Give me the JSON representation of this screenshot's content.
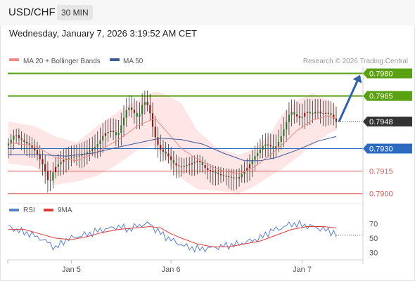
{
  "header": {
    "pair": "USD/CHF",
    "timeframe": "30 MIN"
  },
  "timestamp": "Wednesday, January 7, 2026 3:19:52 AM CET",
  "watermark": "Research © 2026 Trading Central",
  "colors": {
    "bollinger": "#f28b82",
    "ma50": "#3d5a9a",
    "resistance": "#5aa013",
    "support_level": "#e05555",
    "pivot": "#2d6bc1",
    "current": "#333333",
    "rsi": "#5a80c8",
    "rsi_ma": "#e03a3a",
    "arrow": "#2f62a8"
  },
  "chart_data": [
    {
      "type": "candlestick",
      "title": "USD/CHF",
      "timeframe": "30 MIN",
      "ylim": [
        0.7898,
        0.7984
      ],
      "legend": [
        "MA 20 + Bollinger Bands",
        "MA 50"
      ],
      "legend_position": "top-left",
      "x_ticks": [
        "Jan 5",
        "Jan 6",
        "Jan 7"
      ],
      "levels": [
        {
          "value": 0.798,
          "label": "0.7980",
          "kind": "resistance"
        },
        {
          "value": 0.7965,
          "label": "0.7965",
          "kind": "resistance"
        },
        {
          "value": 0.793,
          "label": "0.7930",
          "kind": "pivot"
        },
        {
          "value": 0.7915,
          "label": "0.7915",
          "kind": "support"
        },
        {
          "value": 0.79,
          "label": "0.7900",
          "kind": "support"
        }
      ],
      "current_price": {
        "value": 0.7948,
        "label": "0.7948"
      },
      "projection": {
        "from": 0.7948,
        "to": 0.798
      },
      "price_path": [
        [
          0,
          0.7932
        ],
        [
          3,
          0.794
        ],
        [
          5,
          0.7936
        ],
        [
          8,
          0.7933
        ],
        [
          11,
          0.7928
        ],
        [
          14,
          0.7918
        ],
        [
          16,
          0.7906
        ],
        [
          18,
          0.7917
        ],
        [
          21,
          0.7922
        ],
        [
          24,
          0.7924
        ],
        [
          27,
          0.7925
        ],
        [
          30,
          0.7927
        ],
        [
          33,
          0.793
        ],
        [
          35,
          0.7934
        ],
        [
          37,
          0.794
        ],
        [
          40,
          0.7942
        ],
        [
          42,
          0.7938
        ],
        [
          44,
          0.7948
        ],
        [
          46,
          0.7958
        ],
        [
          48,
          0.7955
        ],
        [
          50,
          0.795
        ],
        [
          52,
          0.7962
        ],
        [
          54,
          0.7958
        ],
        [
          56,
          0.794
        ],
        [
          58,
          0.793
        ],
        [
          61,
          0.7926
        ],
        [
          64,
          0.7919
        ],
        [
          67,
          0.7918
        ],
        [
          70,
          0.792
        ],
        [
          73,
          0.7922
        ],
        [
          76,
          0.7916
        ],
        [
          79,
          0.7914
        ],
        [
          82,
          0.7912
        ],
        [
          85,
          0.7911
        ],
        [
          88,
          0.791
        ],
        [
          90,
          0.7914
        ],
        [
          92,
          0.7918
        ],
        [
          94,
          0.7924
        ],
        [
          96,
          0.7928
        ],
        [
          98,
          0.7933
        ],
        [
          100,
          0.7932
        ],
        [
          102,
          0.793
        ],
        [
          104,
          0.7936
        ],
        [
          106,
          0.7945
        ],
        [
          108,
          0.7955
        ],
        [
          110,
          0.7952
        ],
        [
          112,
          0.795
        ],
        [
          114,
          0.7955
        ],
        [
          116,
          0.7953
        ],
        [
          118,
          0.7955
        ],
        [
          120,
          0.7953
        ],
        [
          122,
          0.7954
        ],
        [
          124,
          0.7952
        ],
        [
          125,
          0.7948
        ]
      ],
      "ma20_path": [
        [
          0,
          0.7934
        ],
        [
          10,
          0.7932
        ],
        [
          18,
          0.7924
        ],
        [
          26,
          0.7922
        ],
        [
          34,
          0.7928
        ],
        [
          42,
          0.7936
        ],
        [
          50,
          0.7946
        ],
        [
          56,
          0.795
        ],
        [
          60,
          0.7942
        ],
        [
          66,
          0.793
        ],
        [
          72,
          0.7923
        ],
        [
          80,
          0.7916
        ],
        [
          88,
          0.7913
        ],
        [
          94,
          0.7918
        ],
        [
          100,
          0.7926
        ],
        [
          104,
          0.7932
        ],
        [
          110,
          0.7942
        ],
        [
          116,
          0.7949
        ],
        [
          122,
          0.7952
        ],
        [
          125,
          0.795
        ]
      ],
      "bb_upper": [
        [
          0,
          0.7948
        ],
        [
          10,
          0.7945
        ],
        [
          18,
          0.7938
        ],
        [
          26,
          0.7934
        ],
        [
          34,
          0.7945
        ],
        [
          42,
          0.7955
        ],
        [
          50,
          0.7963
        ],
        [
          56,
          0.7968
        ],
        [
          60,
          0.7966
        ],
        [
          66,
          0.796
        ],
        [
          72,
          0.7942
        ],
        [
          80,
          0.793
        ],
        [
          88,
          0.7926
        ],
        [
          94,
          0.793
        ],
        [
          100,
          0.794
        ],
        [
          104,
          0.7952
        ],
        [
          110,
          0.7962
        ],
        [
          116,
          0.7967
        ],
        [
          122,
          0.7962
        ],
        [
          125,
          0.7958
        ]
      ],
      "bb_lower": [
        [
          0,
          0.792
        ],
        [
          10,
          0.7918
        ],
        [
          18,
          0.7906
        ],
        [
          26,
          0.7908
        ],
        [
          34,
          0.7912
        ],
        [
          42,
          0.792
        ],
        [
          50,
          0.793
        ],
        [
          56,
          0.7932
        ],
        [
          60,
          0.7922
        ],
        [
          66,
          0.791
        ],
        [
          72,
          0.7903
        ],
        [
          80,
          0.7902
        ],
        [
          88,
          0.79
        ],
        [
          94,
          0.7905
        ],
        [
          100,
          0.7912
        ],
        [
          104,
          0.7916
        ],
        [
          110,
          0.7924
        ],
        [
          116,
          0.7932
        ],
        [
          122,
          0.794
        ],
        [
          125,
          0.7942
        ]
      ],
      "ma50_path": [
        [
          0,
          0.7926
        ],
        [
          12,
          0.7926
        ],
        [
          22,
          0.7925
        ],
        [
          32,
          0.7927
        ],
        [
          42,
          0.7931
        ],
        [
          50,
          0.7934
        ],
        [
          58,
          0.7937
        ],
        [
          66,
          0.7936
        ],
        [
          74,
          0.7933
        ],
        [
          82,
          0.7927
        ],
        [
          90,
          0.7922
        ],
        [
          96,
          0.7922
        ],
        [
          102,
          0.7924
        ],
        [
          110,
          0.7929
        ],
        [
          118,
          0.7935
        ],
        [
          125,
          0.7938
        ]
      ]
    },
    {
      "type": "line",
      "title": "RSI",
      "series": [
        {
          "name": "RSI",
          "values": [
            [
              0,
              66
            ],
            [
              4,
              60
            ],
            [
              8,
              56
            ],
            [
              12,
              50
            ],
            [
              16,
              42
            ],
            [
              18,
              36
            ],
            [
              22,
              48
            ],
            [
              26,
              52
            ],
            [
              30,
              55
            ],
            [
              34,
              60
            ],
            [
              38,
              63
            ],
            [
              42,
              66
            ],
            [
              46,
              62
            ],
            [
              50,
              68
            ],
            [
              54,
              70
            ],
            [
              56,
              62
            ],
            [
              60,
              52
            ],
            [
              64,
              44
            ],
            [
              68,
              38
            ],
            [
              72,
              35
            ],
            [
              76,
              36
            ],
            [
              80,
              38
            ],
            [
              84,
              40
            ],
            [
              88,
              42
            ],
            [
              92,
              46
            ],
            [
              96,
              50
            ],
            [
              100,
              60
            ],
            [
              104,
              64
            ],
            [
              108,
              70
            ],
            [
              112,
              68
            ],
            [
              116,
              66
            ],
            [
              120,
              62
            ],
            [
              124,
              58
            ],
            [
              125,
              54
            ]
          ]
        },
        {
          "name": "9MA",
          "values": [
            [
              0,
              62
            ],
            [
              6,
              62
            ],
            [
              12,
              56
            ],
            [
              18,
              50
            ],
            [
              24,
              48
            ],
            [
              30,
              52
            ],
            [
              36,
              58
            ],
            [
              42,
              62
            ],
            [
              48,
              64
            ],
            [
              54,
              66
            ],
            [
              58,
              64
            ],
            [
              62,
              56
            ],
            [
              66,
              50
            ],
            [
              72,
              42
            ],
            [
              78,
              38
            ],
            [
              84,
              38
            ],
            [
              90,
              42
            ],
            [
              96,
              46
            ],
            [
              102,
              54
            ],
            [
              108,
              62
            ],
            [
              114,
              66
            ],
            [
              120,
              66
            ],
            [
              125,
              64
            ]
          ]
        }
      ],
      "ylim": [
        20,
        80
      ],
      "y_ticks": [
        70,
        50,
        30
      ],
      "legend_position": "top-left"
    }
  ]
}
